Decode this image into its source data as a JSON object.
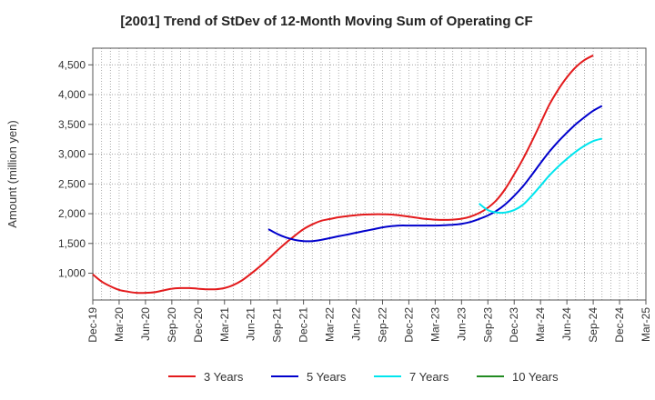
{
  "chart_data": {
    "type": "line",
    "title": "[2001]  Trend of StDev of 12-Month Moving Sum of Operating CF",
    "xlabel": "",
    "ylabel": "Amount (million yen)",
    "ylim": [
      550,
      4780
    ],
    "yticks": [
      1000,
      1500,
      2000,
      2500,
      3000,
      3500,
      4000,
      4500
    ],
    "ytick_labels": [
      "1,000",
      "1,500",
      "2,000",
      "2,500",
      "3,000",
      "3,500",
      "4,000",
      "4,500"
    ],
    "x_range": [
      "2019-12",
      "2025-03"
    ],
    "xtick_labels": [
      "Dec-19",
      "Mar-20",
      "Jun-20",
      "Sep-20",
      "Dec-20",
      "Mar-21",
      "Jun-21",
      "Sep-21",
      "Dec-21",
      "Mar-22",
      "Jun-22",
      "Sep-22",
      "Dec-22",
      "Mar-23",
      "Jun-23",
      "Sep-23",
      "Dec-23",
      "Mar-24",
      "Jun-24",
      "Sep-24",
      "Dec-24",
      "Mar-25"
    ],
    "grid": true,
    "legend_position": "bottom",
    "series": [
      {
        "name": "3 Years",
        "color": "#e31a1c",
        "points": [
          [
            "2019-12",
            980
          ],
          [
            "2020-01",
            860
          ],
          [
            "2020-02",
            780
          ],
          [
            "2020-03",
            720
          ],
          [
            "2020-04",
            690
          ],
          [
            "2020-05",
            670
          ],
          [
            "2020-06",
            670
          ],
          [
            "2020-07",
            680
          ],
          [
            "2020-08",
            710
          ],
          [
            "2020-09",
            740
          ],
          [
            "2020-10",
            750
          ],
          [
            "2020-11",
            750
          ],
          [
            "2020-12",
            740
          ],
          [
            "2021-01",
            730
          ],
          [
            "2021-02",
            730
          ],
          [
            "2021-03",
            750
          ],
          [
            "2021-04",
            800
          ],
          [
            "2021-05",
            880
          ],
          [
            "2021-06",
            990
          ],
          [
            "2021-07",
            1110
          ],
          [
            "2021-08",
            1240
          ],
          [
            "2021-09",
            1380
          ],
          [
            "2021-10",
            1510
          ],
          [
            "2021-11",
            1630
          ],
          [
            "2021-12",
            1740
          ],
          [
            "2022-01",
            1820
          ],
          [
            "2022-02",
            1880
          ],
          [
            "2022-03",
            1910
          ],
          [
            "2022-04",
            1940
          ],
          [
            "2022-05",
            1960
          ],
          [
            "2022-06",
            1975
          ],
          [
            "2022-07",
            1985
          ],
          [
            "2022-08",
            1990
          ],
          [
            "2022-09",
            1990
          ],
          [
            "2022-10",
            1985
          ],
          [
            "2022-11",
            1970
          ],
          [
            "2022-12",
            1950
          ],
          [
            "2023-01",
            1930
          ],
          [
            "2023-02",
            1910
          ],
          [
            "2023-03",
            1900
          ],
          [
            "2023-04",
            1895
          ],
          [
            "2023-05",
            1900
          ],
          [
            "2023-06",
            1915
          ],
          [
            "2023-07",
            1950
          ],
          [
            "2023-08",
            2010
          ],
          [
            "2023-09",
            2100
          ],
          [
            "2023-10",
            2230
          ],
          [
            "2023-11",
            2420
          ],
          [
            "2023-12",
            2660
          ],
          [
            "2024-01",
            2920
          ],
          [
            "2024-02",
            3210
          ],
          [
            "2024-03",
            3520
          ],
          [
            "2024-04",
            3830
          ],
          [
            "2024-05",
            4080
          ],
          [
            "2024-06",
            4290
          ],
          [
            "2024-07",
            4460
          ],
          [
            "2024-08",
            4580
          ],
          [
            "2024-09",
            4660
          ]
        ]
      },
      {
        "name": "5 Years",
        "color": "#0000cc",
        "points": [
          [
            "2021-08",
            1740
          ],
          [
            "2021-09",
            1660
          ],
          [
            "2021-10",
            1600
          ],
          [
            "2021-11",
            1560
          ],
          [
            "2021-12",
            1540
          ],
          [
            "2022-01",
            1540
          ],
          [
            "2022-02",
            1560
          ],
          [
            "2022-03",
            1590
          ],
          [
            "2022-04",
            1620
          ],
          [
            "2022-05",
            1650
          ],
          [
            "2022-06",
            1680
          ],
          [
            "2022-07",
            1710
          ],
          [
            "2022-08",
            1740
          ],
          [
            "2022-09",
            1770
          ],
          [
            "2022-10",
            1790
          ],
          [
            "2022-11",
            1800
          ],
          [
            "2022-12",
            1800
          ],
          [
            "2023-01",
            1800
          ],
          [
            "2023-02",
            1800
          ],
          [
            "2023-03",
            1800
          ],
          [
            "2023-04",
            1805
          ],
          [
            "2023-05",
            1815
          ],
          [
            "2023-06",
            1830
          ],
          [
            "2023-07",
            1860
          ],
          [
            "2023-08",
            1910
          ],
          [
            "2023-09",
            1970
          ],
          [
            "2023-10",
            2050
          ],
          [
            "2023-11",
            2160
          ],
          [
            "2023-12",
            2300
          ],
          [
            "2024-01",
            2460
          ],
          [
            "2024-02",
            2650
          ],
          [
            "2024-03",
            2850
          ],
          [
            "2024-04",
            3040
          ],
          [
            "2024-05",
            3210
          ],
          [
            "2024-06",
            3360
          ],
          [
            "2024-07",
            3500
          ],
          [
            "2024-08",
            3620
          ],
          [
            "2024-09",
            3730
          ],
          [
            "2024-10",
            3810
          ]
        ]
      },
      {
        "name": "7 Years",
        "color": "#00e5ee",
        "points": [
          [
            "2023-08",
            2170
          ],
          [
            "2023-09",
            2060
          ],
          [
            "2023-10",
            2020
          ],
          [
            "2023-11",
            2020
          ],
          [
            "2023-12",
            2060
          ],
          [
            "2024-01",
            2150
          ],
          [
            "2024-02",
            2300
          ],
          [
            "2024-03",
            2470
          ],
          [
            "2024-04",
            2640
          ],
          [
            "2024-05",
            2790
          ],
          [
            "2024-06",
            2920
          ],
          [
            "2024-07",
            3040
          ],
          [
            "2024-08",
            3140
          ],
          [
            "2024-09",
            3220
          ],
          [
            "2024-10",
            3260
          ]
        ]
      },
      {
        "name": "10 Years",
        "color": "#228b22",
        "points": []
      }
    ]
  }
}
